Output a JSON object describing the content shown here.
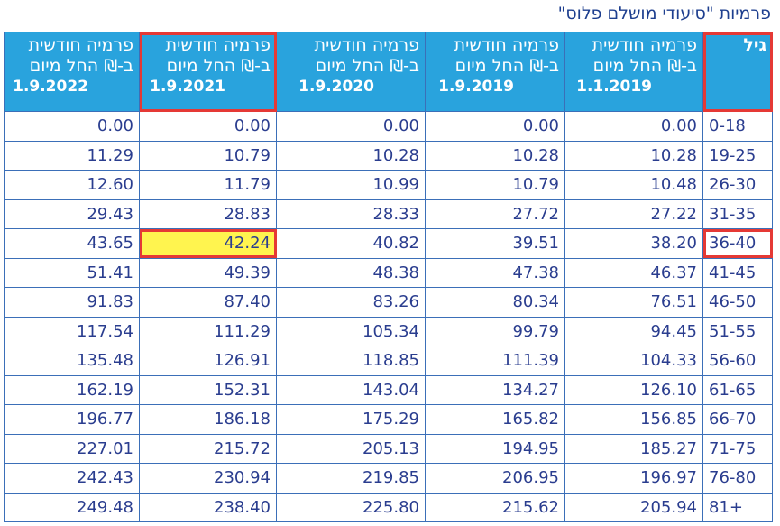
{
  "title": "פרמיות \"סיעודי מושלם פלוס\"",
  "table": {
    "header": {
      "age_label": "גיל",
      "columns": [
        {
          "line1": "פרמיה חודשית",
          "line2": "ב-₪ החל מיום",
          "date": "1.1.2019"
        },
        {
          "line1": "פרמיה חודשית",
          "line2": "ב-₪ החל מיום",
          "date": "1.9.2019"
        },
        {
          "line1": "פרמיה חודשית",
          "line2": "ב-₪ החל מיום",
          "date": "1.9.2020"
        },
        {
          "line1": "פרמיה חודשית",
          "line2": "ב-₪ החל מיום",
          "date": "1.9.2021"
        },
        {
          "line1": "פרמיה חודשית",
          "line2": "ב-₪ החל מיום",
          "date": "1.9.2022"
        }
      ]
    },
    "rows": [
      [
        "0-18",
        "0.00",
        "0.00",
        "0.00",
        "0.00",
        "0.00"
      ],
      [
        "19-25",
        "10.28",
        "10.28",
        "10.28",
        "10.79",
        "11.29"
      ],
      [
        "26-30",
        "10.48",
        "10.79",
        "10.99",
        "11.79",
        "12.60"
      ],
      [
        "31-35",
        "27.22",
        "27.72",
        "28.33",
        "28.83",
        "29.43"
      ],
      [
        "36-40",
        "38.20",
        "39.51",
        "40.82",
        "42.24",
        "43.65"
      ],
      [
        "41-45",
        "46.37",
        "47.38",
        "48.38",
        "49.39",
        "51.41"
      ],
      [
        "46-50",
        "76.51",
        "80.34",
        "83.26",
        "87.40",
        "91.83"
      ],
      [
        "51-55",
        "94.45",
        "99.79",
        "105.34",
        "111.29",
        "117.54"
      ],
      [
        "56-60",
        "104.33",
        "111.39",
        "118.85",
        "126.91",
        "135.48"
      ],
      [
        "61-65",
        "126.10",
        "134.27",
        "143.04",
        "152.31",
        "162.19"
      ],
      [
        "66-70",
        "156.85",
        "165.82",
        "175.29",
        "186.18",
        "196.77"
      ],
      [
        "71-75",
        "185.27",
        "194.95",
        "205.13",
        "215.72",
        "227.01"
      ],
      [
        "76-80",
        "196.97",
        "206.95",
        "219.85",
        "230.94",
        "242.43"
      ],
      [
        "81+",
        "205.94",
        "215.62",
        "225.80",
        "238.40",
        "249.48"
      ]
    ]
  }
}
